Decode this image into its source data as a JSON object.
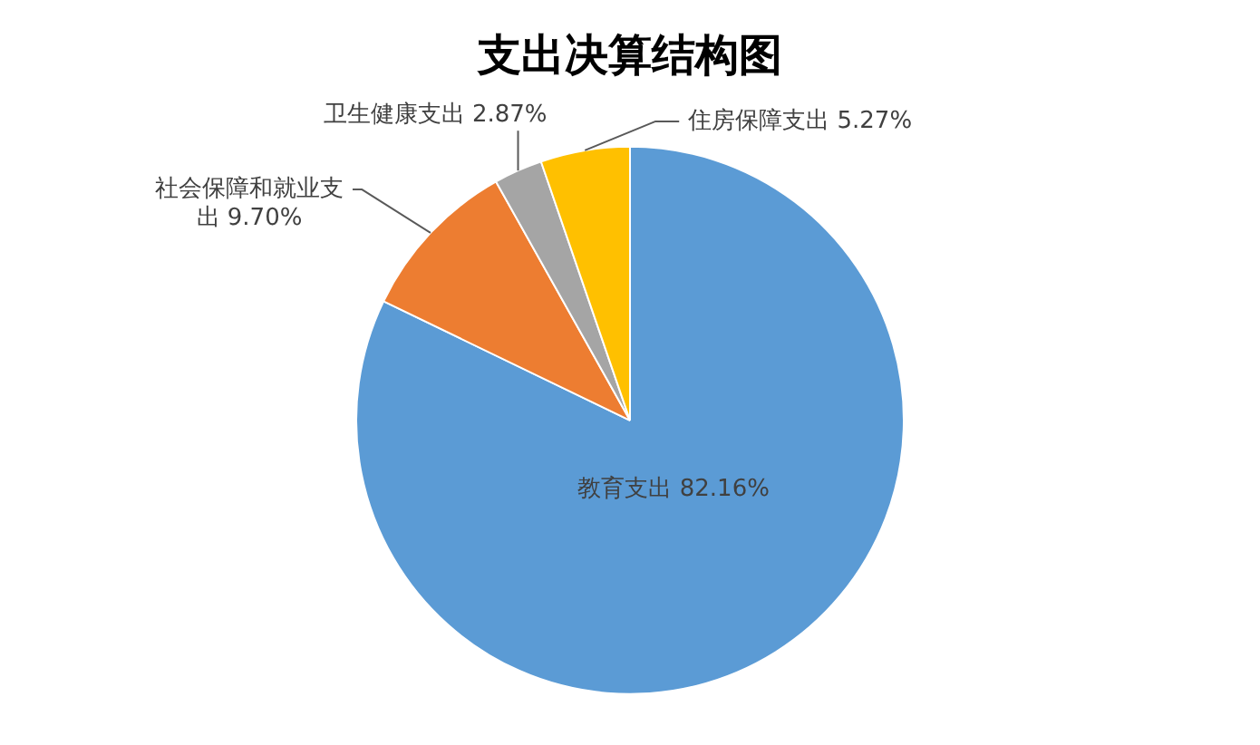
{
  "chart_data": {
    "type": "pie",
    "title": "支出决算结构图",
    "categories": [
      "教育支出",
      "社会保障和就业支出",
      "卫生健康支出",
      "住房保障支出"
    ],
    "values": [
      82.16,
      9.7,
      2.87,
      5.27
    ],
    "colors": [
      "#5b9bd5",
      "#ed7d31",
      "#a5a5a5",
      "#ffc000"
    ],
    "value_labels": [
      "82.16%",
      "9.70%",
      "2.87%",
      "5.27%"
    ]
  }
}
